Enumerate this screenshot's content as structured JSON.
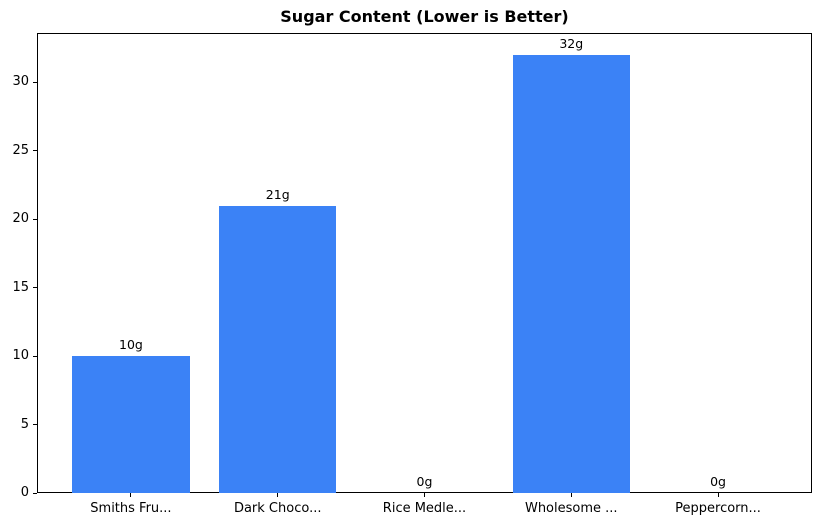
{
  "chart_data": {
    "type": "bar",
    "title": "Sugar Content (Lower is Better)",
    "categories": [
      "Smiths Fru...",
      "Dark Choco...",
      "Rice Medle...",
      "Wholesome ...",
      "Peppercorn..."
    ],
    "values": [
      10,
      21,
      0,
      32,
      0
    ],
    "bar_labels": [
      "10g",
      "21g",
      "0g",
      "32g",
      "0g"
    ],
    "yticks": [
      0,
      5,
      10,
      15,
      20,
      25,
      30
    ],
    "ylim": [
      0,
      33.6
    ],
    "xlabel": "",
    "ylabel": "",
    "grid": false,
    "legend_position": "none",
    "bar_color": "#3b82f6",
    "axis_color": "#000000",
    "background_color": "#ffffff",
    "bar_width_fraction": 0.8,
    "x_margin_units": 0.64
  }
}
